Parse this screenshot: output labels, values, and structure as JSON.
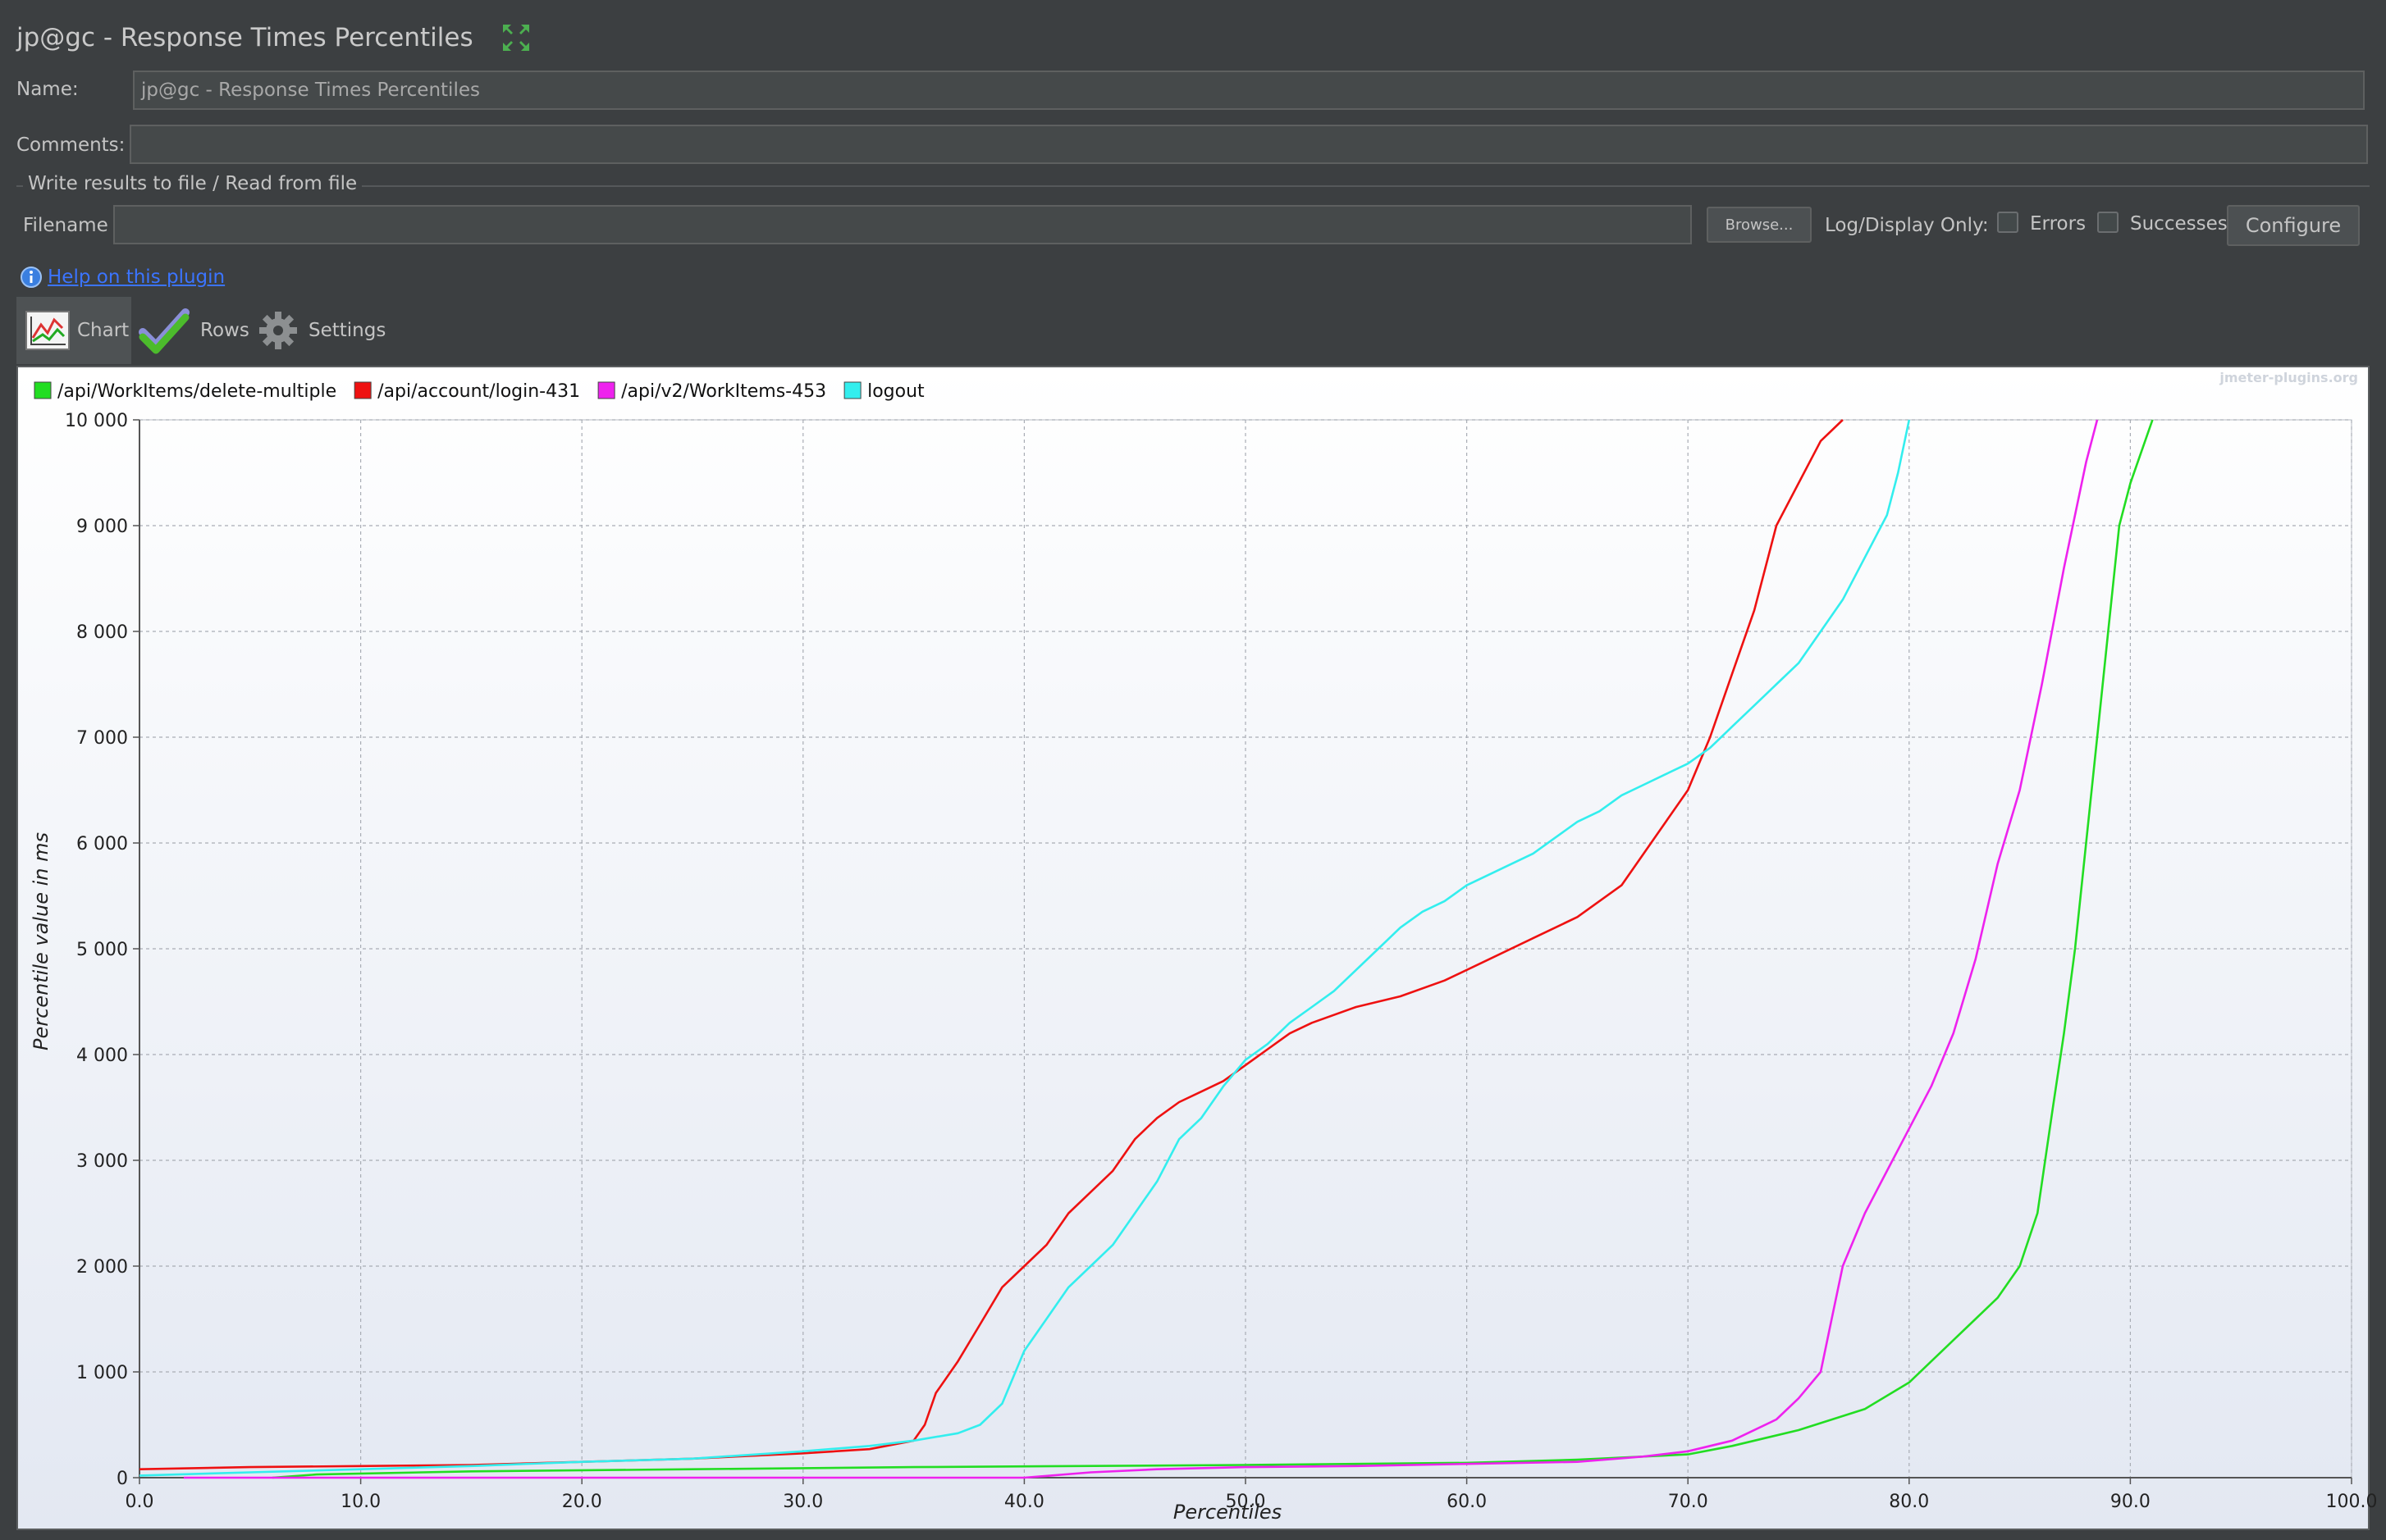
{
  "window": {
    "title": "jp@gc - Response Times Percentiles",
    "expand_icon": "expand-arrows-icon"
  },
  "form": {
    "name_label": "Name:",
    "name_value": "jp@gc - Response Times Percentiles",
    "comments_label": "Comments:",
    "comments_value": ""
  },
  "file_group": {
    "title": "Write results to file / Read from file",
    "filename_label": "Filename",
    "filename_value": "",
    "browse_label": "Browse...",
    "log_display_label": "Log/Display Only:",
    "errors_label": "Errors",
    "errors_checked": false,
    "successes_label": "Successes",
    "successes_checked": false,
    "configure_label": "Configure"
  },
  "help": {
    "icon": "info-icon",
    "link_text": "Help on this plugin"
  },
  "tabs": [
    {
      "label": "Chart",
      "icon": "chart-icon",
      "active": true
    },
    {
      "label": "Rows",
      "icon": "checkmark-icon",
      "active": false
    },
    {
      "label": "Settings",
      "icon": "gear-icon",
      "active": false
    }
  ],
  "chart_data": {
    "type": "line",
    "watermark": "jmeter-plugins.org",
    "xlabel": "Percentiles",
    "ylabel": "Percentile value in ms",
    "xlim": [
      0,
      100
    ],
    "ylim": [
      0,
      10000
    ],
    "xticks": [
      "0.0",
      "10.0",
      "20.0",
      "30.0",
      "40.0",
      "50.0",
      "60.0",
      "70.0",
      "80.0",
      "90.0",
      "100.0"
    ],
    "yticks": [
      "0",
      "1 000",
      "2 000",
      "3 000",
      "4 000",
      "5 000",
      "6 000",
      "7 000",
      "8 000",
      "9 000",
      "10 000"
    ],
    "grid": true,
    "legend_position": "top",
    "series": [
      {
        "name": "/api/WorkItems/delete-multiple",
        "color": "#22dd22",
        "points": [
          [
            6,
            0
          ],
          [
            8,
            30
          ],
          [
            15,
            60
          ],
          [
            25,
            80
          ],
          [
            35,
            100
          ],
          [
            50,
            120
          ],
          [
            60,
            140
          ],
          [
            65,
            170
          ],
          [
            70,
            220
          ],
          [
            72,
            300
          ],
          [
            75,
            450
          ],
          [
            78,
            650
          ],
          [
            80,
            900
          ],
          [
            81,
            1100
          ],
          [
            82,
            1300
          ],
          [
            83,
            1500
          ],
          [
            84,
            1700
          ],
          [
            85,
            2000
          ],
          [
            85.8,
            2500
          ],
          [
            86.5,
            3500
          ],
          [
            87,
            4200
          ],
          [
            87.5,
            5000
          ],
          [
            88,
            6000
          ],
          [
            88.5,
            7000
          ],
          [
            89,
            8000
          ],
          [
            89.5,
            9000
          ],
          [
            90,
            9400
          ],
          [
            90.5,
            9700
          ],
          [
            91,
            10000
          ]
        ]
      },
      {
        "name": "/api/account/login-431",
        "color": "#ee1111",
        "points": [
          [
            0,
            80
          ],
          [
            5,
            100
          ],
          [
            10,
            110
          ],
          [
            15,
            120
          ],
          [
            20,
            150
          ],
          [
            25,
            180
          ],
          [
            30,
            230
          ],
          [
            33,
            270
          ],
          [
            35,
            350
          ],
          [
            35.5,
            500
          ],
          [
            36,
            800
          ],
          [
            37,
            1100
          ],
          [
            38,
            1450
          ],
          [
            39,
            1800
          ],
          [
            40,
            2000
          ],
          [
            41,
            2200
          ],
          [
            42,
            2500
          ],
          [
            43,
            2700
          ],
          [
            44,
            2900
          ],
          [
            45,
            3200
          ],
          [
            46,
            3400
          ],
          [
            47,
            3550
          ],
          [
            48,
            3650
          ],
          [
            49,
            3750
          ],
          [
            50,
            3900
          ],
          [
            51,
            4050
          ],
          [
            52,
            4200
          ],
          [
            53,
            4300
          ],
          [
            55,
            4450
          ],
          [
            57,
            4550
          ],
          [
            59,
            4700
          ],
          [
            61,
            4900
          ],
          [
            63,
            5100
          ],
          [
            65,
            5300
          ],
          [
            67,
            5600
          ],
          [
            68,
            5900
          ],
          [
            69,
            6200
          ],
          [
            70,
            6500
          ],
          [
            71,
            7000
          ],
          [
            72,
            7600
          ],
          [
            73,
            8200
          ],
          [
            74,
            9000
          ],
          [
            75,
            9400
          ],
          [
            76,
            9800
          ],
          [
            77,
            10000
          ]
        ]
      },
      {
        "name": "/api/v2/WorkItems-453",
        "color": "#ee22ee",
        "points": [
          [
            2,
            0
          ],
          [
            40,
            0
          ],
          [
            43,
            50
          ],
          [
            46,
            80
          ],
          [
            50,
            100
          ],
          [
            55,
            110
          ],
          [
            60,
            130
          ],
          [
            65,
            150
          ],
          [
            68,
            200
          ],
          [
            70,
            250
          ],
          [
            72,
            350
          ],
          [
            74,
            550
          ],
          [
            75,
            750
          ],
          [
            76,
            1000
          ],
          [
            76.5,
            1500
          ],
          [
            77,
            2000
          ],
          [
            78,
            2500
          ],
          [
            79,
            2900
          ],
          [
            80,
            3300
          ],
          [
            81,
            3700
          ],
          [
            82,
            4200
          ],
          [
            83,
            4900
          ],
          [
            84,
            5800
          ],
          [
            85,
            6500
          ],
          [
            86,
            7500
          ],
          [
            87,
            8600
          ],
          [
            88,
            9600
          ],
          [
            88.5,
            10000
          ]
        ]
      },
      {
        "name": "logout",
        "color": "#33eeee",
        "points": [
          [
            0,
            20
          ],
          [
            5,
            50
          ],
          [
            10,
            80
          ],
          [
            15,
            110
          ],
          [
            20,
            150
          ],
          [
            25,
            180
          ],
          [
            30,
            250
          ],
          [
            33,
            300
          ],
          [
            35,
            350
          ],
          [
            37,
            420
          ],
          [
            38,
            500
          ],
          [
            39,
            700
          ],
          [
            40,
            1200
          ],
          [
            41,
            1500
          ],
          [
            42,
            1800
          ],
          [
            43,
            2000
          ],
          [
            44,
            2200
          ],
          [
            45,
            2500
          ],
          [
            46,
            2800
          ],
          [
            47,
            3200
          ],
          [
            48,
            3400
          ],
          [
            49,
            3700
          ],
          [
            50,
            3950
          ],
          [
            51,
            4100
          ],
          [
            52,
            4300
          ],
          [
            53,
            4450
          ],
          [
            54,
            4600
          ],
          [
            55,
            4800
          ],
          [
            56,
            5000
          ],
          [
            57,
            5200
          ],
          [
            58,
            5350
          ],
          [
            59,
            5450
          ],
          [
            60,
            5600
          ],
          [
            61,
            5700
          ],
          [
            62,
            5800
          ],
          [
            63,
            5900
          ],
          [
            64,
            6050
          ],
          [
            65,
            6200
          ],
          [
            66,
            6300
          ],
          [
            67,
            6450
          ],
          [
            68,
            6550
          ],
          [
            69,
            6650
          ],
          [
            70,
            6750
          ],
          [
            71,
            6900
          ],
          [
            72,
            7100
          ],
          [
            73,
            7300
          ],
          [
            74,
            7500
          ],
          [
            75,
            7700
          ],
          [
            76,
            8000
          ],
          [
            77,
            8300
          ],
          [
            78,
            8700
          ],
          [
            79,
            9100
          ],
          [
            79.5,
            9500
          ],
          [
            80,
            10000
          ]
        ]
      }
    ]
  }
}
